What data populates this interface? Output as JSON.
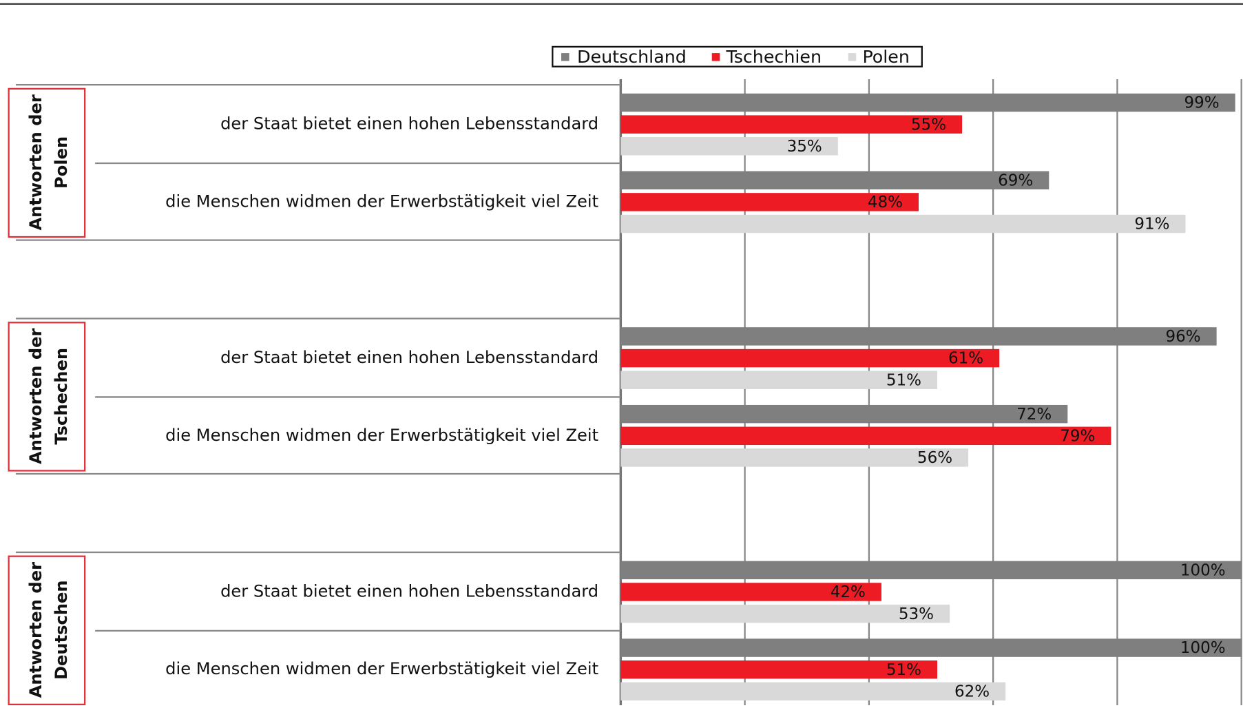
{
  "chart_data": {
    "type": "bar",
    "orientation": "horizontal",
    "groups": [
      [
        "Antworten der",
        "Polen"
      ],
      [
        "Antworten der",
        "Tschechen"
      ],
      [
        "Antworten der",
        "Deutschen"
      ]
    ],
    "categories": [
      "der Staat bietet einen hohen Lebensstandard",
      "die Menschen widmen der Erwerbstätigkeit viel Zeit",
      "der Staat bietet einen hohen Lebensstandard",
      "die Menschen widmen der Erwerbstätigkeit viel Zeit",
      "der Staat bietet einen hohen Lebensstandard",
      "die Menschen widmen der Erwerbstätigkeit viel Zeit"
    ],
    "series": [
      {
        "name": "Deutschland",
        "color": "#7f7f7f",
        "label_color": "#ffffff",
        "values": [
          99,
          69,
          96,
          72,
          100,
          100
        ],
        "value_labels": [
          "99%",
          "69%",
          "96%",
          "72%",
          "100%",
          "100%"
        ]
      },
      {
        "name": "Tschechien",
        "color": "#ed1c24",
        "label_color": "#ffffff",
        "values": [
          55,
          48,
          61,
          79,
          42,
          51
        ],
        "value_labels": [
          "55%",
          "48%",
          "61%",
          "79%",
          "42%",
          "51%"
        ]
      },
      {
        "name": "Polen",
        "color": "#d9d9d9",
        "label_color": "#222222",
        "values": [
          35,
          91,
          51,
          56,
          53,
          62
        ],
        "value_labels": [
          "35%",
          "91%",
          "51%",
          "56%",
          "53%",
          "62%"
        ]
      }
    ],
    "xlim": [
      0,
      100
    ],
    "xticks": [
      0,
      20,
      40,
      60,
      80,
      100
    ],
    "grid": true
  }
}
